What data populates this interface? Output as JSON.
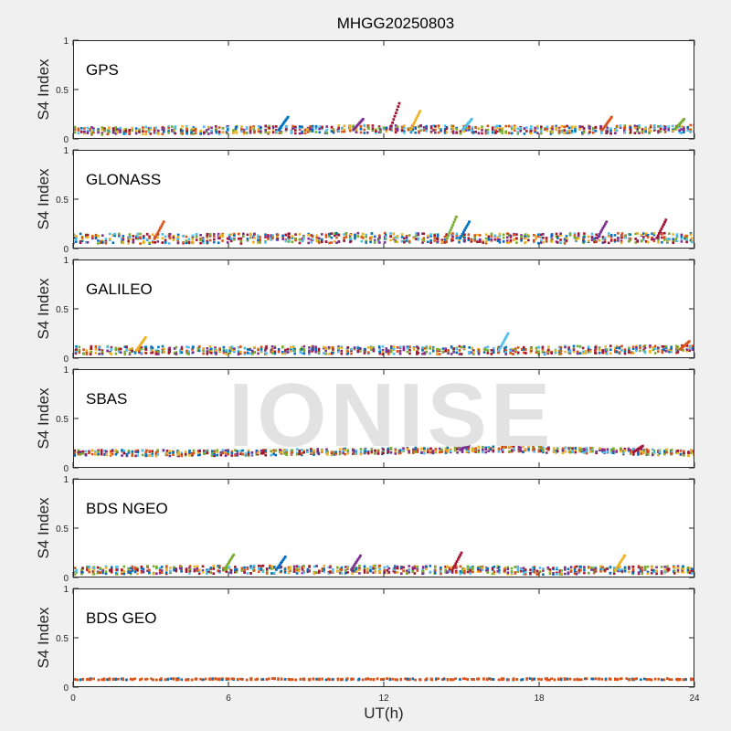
{
  "figure": {
    "title": "MHGG20250803",
    "xlabel": "UT(h)",
    "watermark": "IONISE"
  },
  "chart_data": {
    "type": "scatter",
    "x_label": "UT(h)",
    "y_label": "S4 Index",
    "xlim": [
      0,
      24
    ],
    "ylim": [
      0,
      1
    ],
    "x_ticks": [
      0,
      6,
      12,
      18,
      24
    ],
    "y_ticks": [
      0,
      0.5,
      1
    ],
    "y_tick_labels": [
      "0",
      "0.5",
      "1"
    ],
    "series_colors": [
      "#0072bd",
      "#d95319",
      "#edb120",
      "#7e2f8e",
      "#77ac30",
      "#4dbeee",
      "#a2142f"
    ],
    "panels": [
      {
        "name": "GPS",
        "baseline": [
          [
            0,
            0.08
          ],
          [
            6,
            0.09
          ],
          [
            12,
            0.1
          ],
          [
            18,
            0.09
          ],
          [
            24,
            0.1
          ]
        ],
        "spread": 0.04,
        "peaks": [
          [
            8.3,
            0.22
          ],
          [
            11.2,
            0.2
          ],
          [
            12.6,
            0.36
          ],
          [
            13.4,
            0.28
          ],
          [
            15.4,
            0.2
          ],
          [
            20.8,
            0.22
          ],
          [
            23.6,
            0.2
          ]
        ]
      },
      {
        "name": "GLONASS",
        "baseline": [
          [
            0,
            0.1
          ],
          [
            6,
            0.1
          ],
          [
            12,
            0.11
          ],
          [
            18,
            0.1
          ],
          [
            24,
            0.11
          ]
        ],
        "spread": 0.05,
        "peaks": [
          [
            3.5,
            0.27
          ],
          [
            14.8,
            0.32
          ],
          [
            15.3,
            0.27
          ],
          [
            20.6,
            0.27
          ],
          [
            22.9,
            0.29
          ]
        ]
      },
      {
        "name": "GALILEO",
        "baseline": [
          [
            0,
            0.08
          ],
          [
            6,
            0.08
          ],
          [
            12,
            0.08
          ],
          [
            18,
            0.08
          ],
          [
            24,
            0.09
          ]
        ],
        "spread": 0.04,
        "peaks": [
          [
            2.8,
            0.21
          ],
          [
            16.8,
            0.25
          ],
          [
            23.8,
            0.17
          ]
        ]
      },
      {
        "name": "SBAS",
        "baseline": [
          [
            0,
            0.15
          ],
          [
            6,
            0.15
          ],
          [
            12,
            0.17
          ],
          [
            17,
            0.19
          ],
          [
            24,
            0.15
          ]
        ],
        "spread": 0.03,
        "peaks": [
          [
            15.3,
            0.23
          ],
          [
            22,
            0.22
          ]
        ]
      },
      {
        "name": "BDS NGEO",
        "baseline": [
          [
            0,
            0.07
          ],
          [
            6,
            0.08
          ],
          [
            12,
            0.08
          ],
          [
            18,
            0.07
          ],
          [
            24,
            0.08
          ]
        ],
        "spread": 0.04,
        "peaks": [
          [
            6.2,
            0.23
          ],
          [
            8.2,
            0.21
          ],
          [
            11.1,
            0.22
          ],
          [
            15,
            0.25
          ],
          [
            21.3,
            0.22
          ]
        ]
      },
      {
        "name": "BDS GEO",
        "baseline": [
          [
            0,
            0.08
          ],
          [
            12,
            0.08
          ],
          [
            24,
            0.08
          ]
        ],
        "spread": 0.008,
        "peaks": []
      }
    ]
  }
}
